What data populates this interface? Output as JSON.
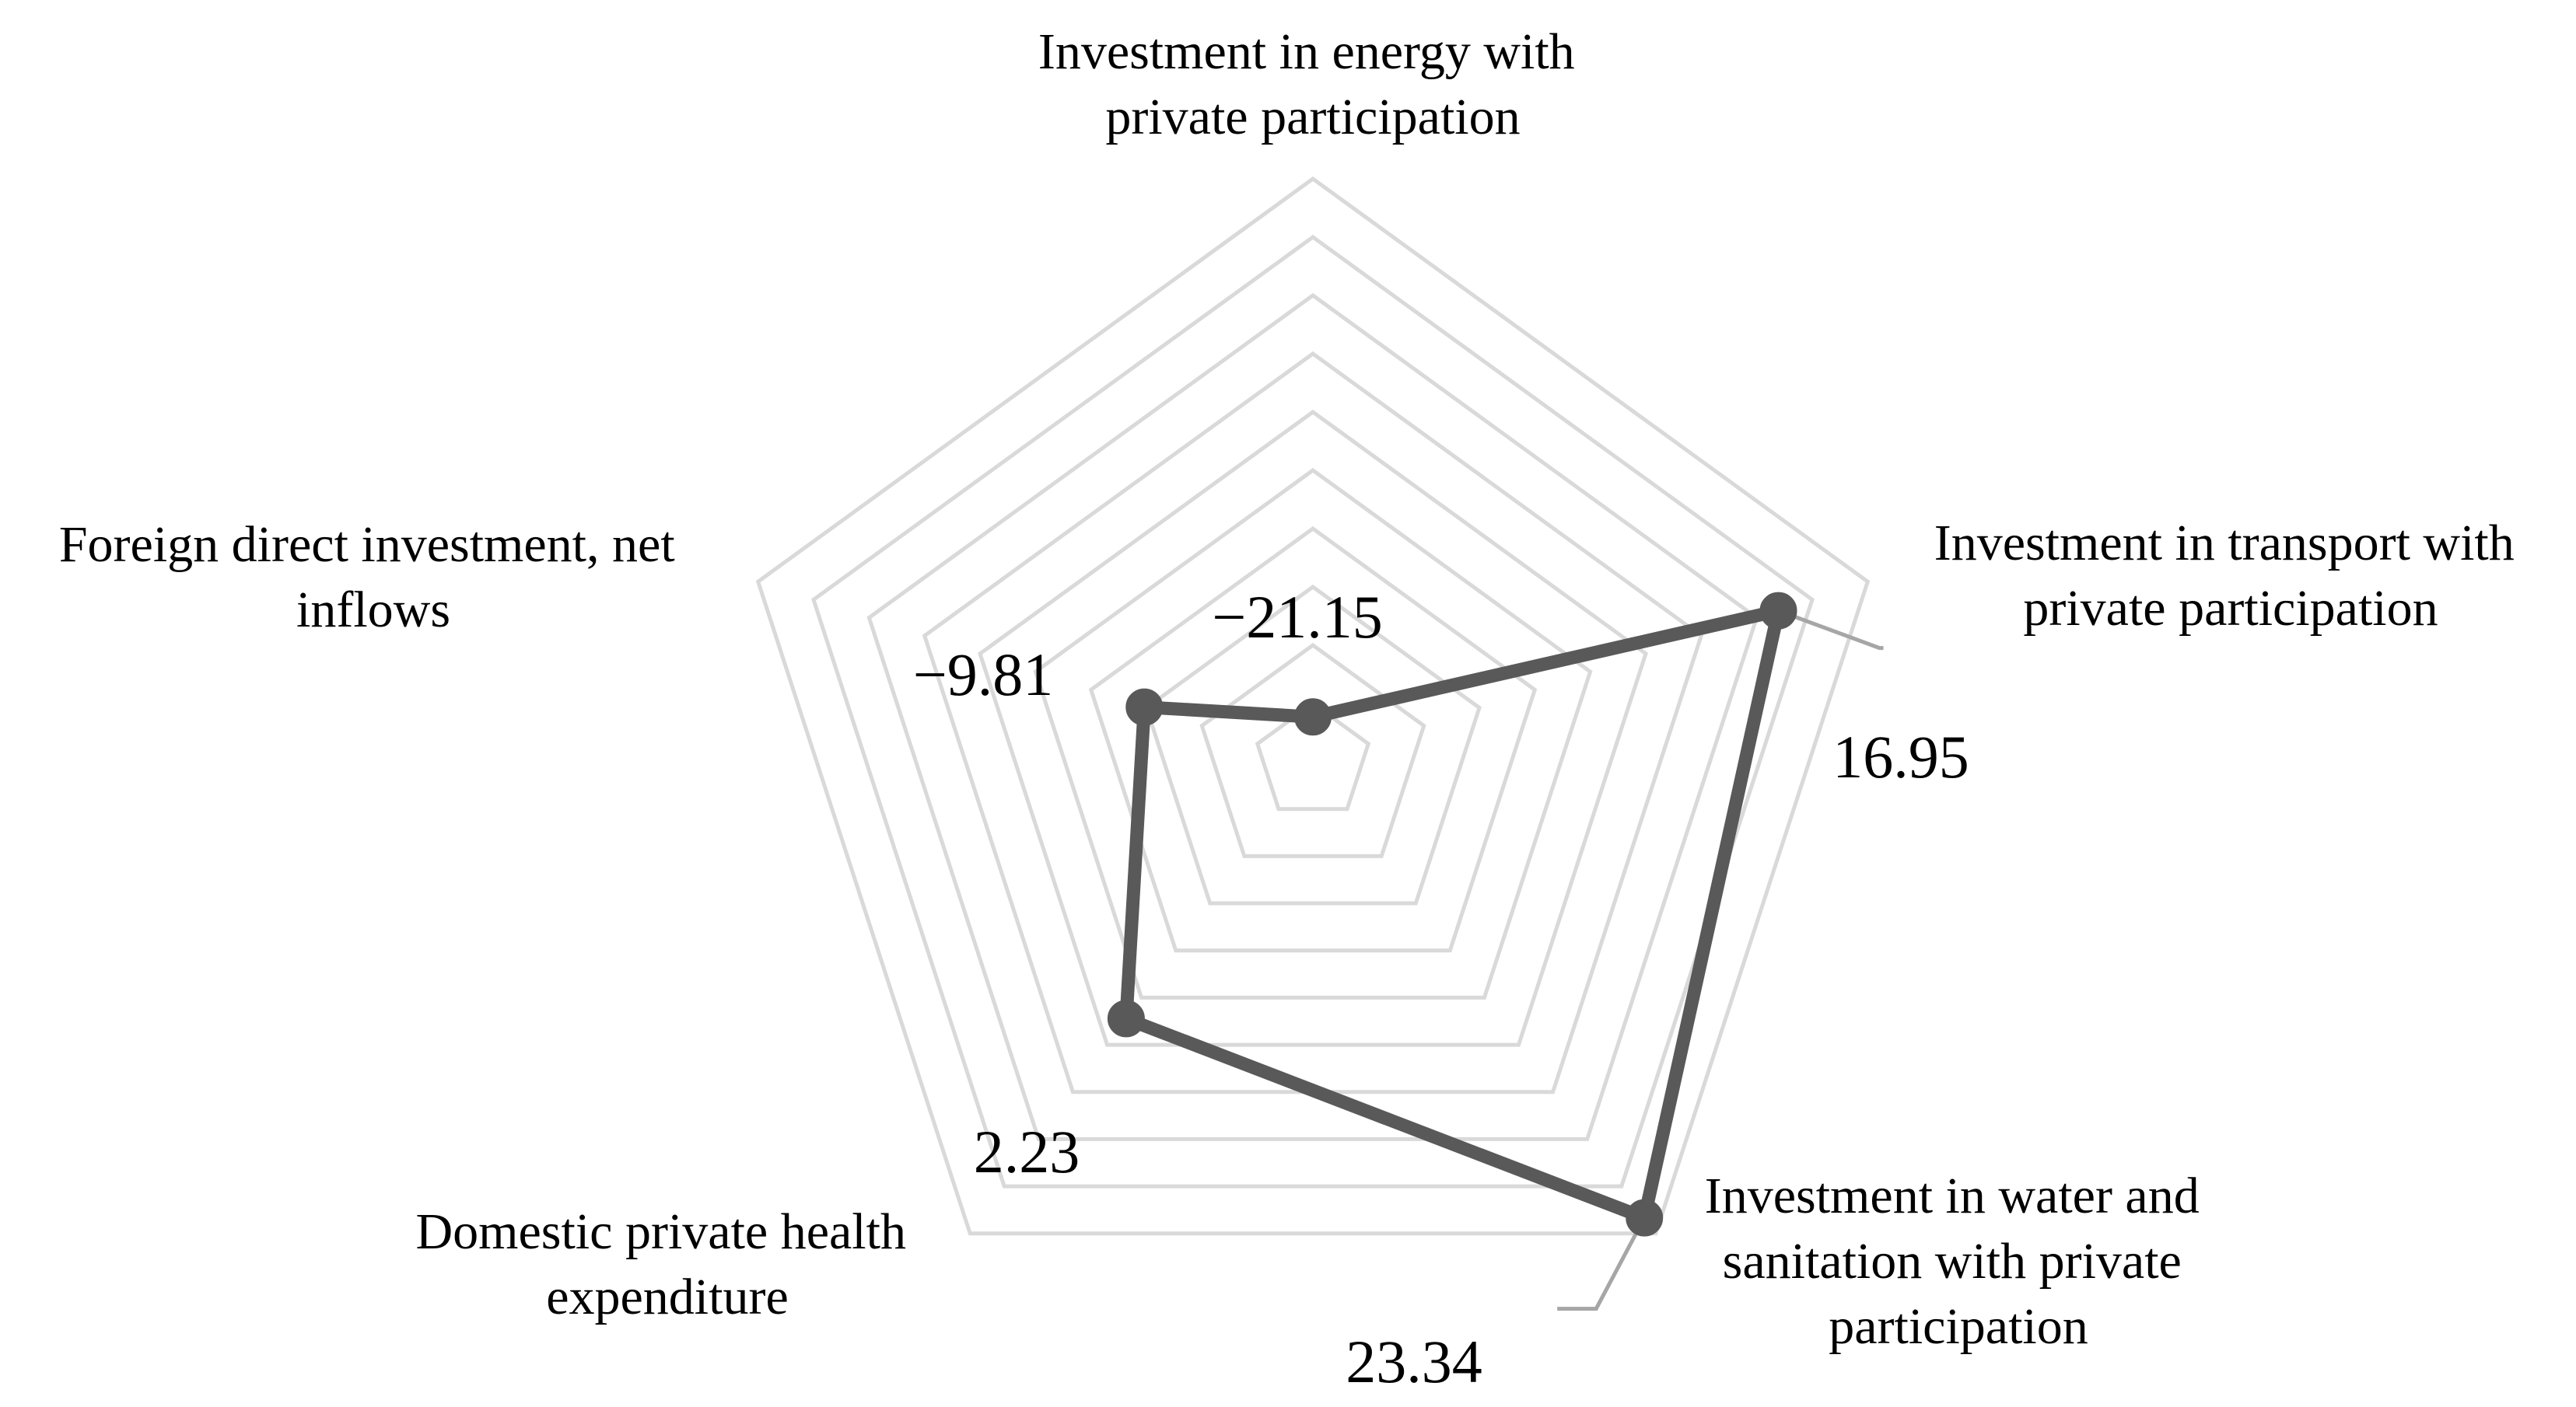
{
  "chart_data": {
    "type": "radar",
    "title": "",
    "axes": [
      {
        "label_lines": [
          "Investment in energy with",
          "private participation"
        ],
        "label": "Investment in energy with private participation"
      },
      {
        "label_lines": [
          "Investment in transport with",
          "private participation"
        ],
        "label": "Investment in transport with private participation"
      },
      {
        "label_lines": [
          "Investment in water and",
          "sanitation with private",
          "participation"
        ],
        "label": "Investment in water and sanitation with private participation"
      },
      {
        "label_lines": [
          "Domestic private health",
          "expenditure"
        ],
        "label": "Domestic private health expenditure"
      },
      {
        "label_lines": [
          "Foreign direct investment, net",
          "inflows"
        ],
        "label": "Foreign direct investment, net inflows"
      }
    ],
    "series": [
      {
        "values": [
          -21.15,
          16.95,
          23.34,
          2.23,
          -9.81
        ],
        "data_labels": [
          "−21.15",
          "16.95",
          "23.34",
          "2.23",
          "−9.81"
        ],
        "color": "#595959"
      }
    ],
    "range": [
      -25,
      25
    ],
    "grid_rings": 10,
    "grid": true,
    "legend": "none",
    "grid_color": "#d9d9d9"
  }
}
